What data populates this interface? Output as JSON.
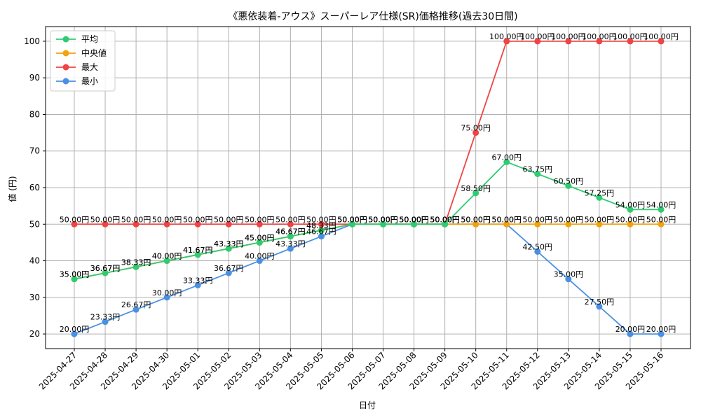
{
  "chart_data": {
    "type": "line",
    "title": "《悪依装着-アウス》スーパーレア仕様(SR)価格推移(過去30日間)",
    "xlabel": "日付",
    "ylabel": "値 (円)",
    "ylim": [
      16,
      104
    ],
    "yticks": [
      20,
      30,
      40,
      50,
      60,
      70,
      80,
      90,
      100
    ],
    "grid": true,
    "legend_position": "top-left",
    "x": [
      "2025-04-27",
      "2025-04-28",
      "2025-04-29",
      "2025-04-30",
      "2025-05-01",
      "2025-05-02",
      "2025-05-03",
      "2025-05-04",
      "2025-05-05",
      "2025-05-06",
      "2025-05-07",
      "2025-05-08",
      "2025-05-09",
      "2025-05-10",
      "2025-05-11",
      "2025-05-12",
      "2025-05-13",
      "2025-05-14",
      "2025-05-15",
      "2025-05-16"
    ],
    "value_suffix": "円",
    "series": [
      {
        "name": "平均",
        "color": "#2ecc71",
        "values": [
          35.0,
          36.67,
          38.33,
          40.0,
          41.67,
          43.33,
          45.0,
          46.67,
          48.33,
          50.0,
          50.0,
          50.0,
          50.0,
          58.5,
          67.0,
          63.75,
          60.5,
          57.25,
          54.0,
          54.0
        ]
      },
      {
        "name": "中央値",
        "color": "#f1a20d",
        "values": [
          35.0,
          36.67,
          38.33,
          40.0,
          41.67,
          43.33,
          45.0,
          46.67,
          48.33,
          50.0,
          50.0,
          50.0,
          50.0,
          50.0,
          50.0,
          50.0,
          50.0,
          50.0,
          50.0,
          50.0
        ]
      },
      {
        "name": "最大",
        "color": "#ef4444",
        "values": [
          50.0,
          50.0,
          50.0,
          50.0,
          50.0,
          50.0,
          50.0,
          50.0,
          50.0,
          50.0,
          50.0,
          50.0,
          50.0,
          75.0,
          100.0,
          100.0,
          100.0,
          100.0,
          100.0,
          100.0
        ]
      },
      {
        "name": "最小",
        "color": "#4a90e2",
        "values": [
          20.0,
          23.33,
          26.67,
          30.0,
          33.33,
          36.67,
          40.0,
          43.33,
          46.67,
          50.0,
          50.0,
          50.0,
          50.0,
          50.0,
          50.0,
          42.5,
          35.0,
          27.5,
          20.0,
          20.0
        ]
      }
    ]
  }
}
